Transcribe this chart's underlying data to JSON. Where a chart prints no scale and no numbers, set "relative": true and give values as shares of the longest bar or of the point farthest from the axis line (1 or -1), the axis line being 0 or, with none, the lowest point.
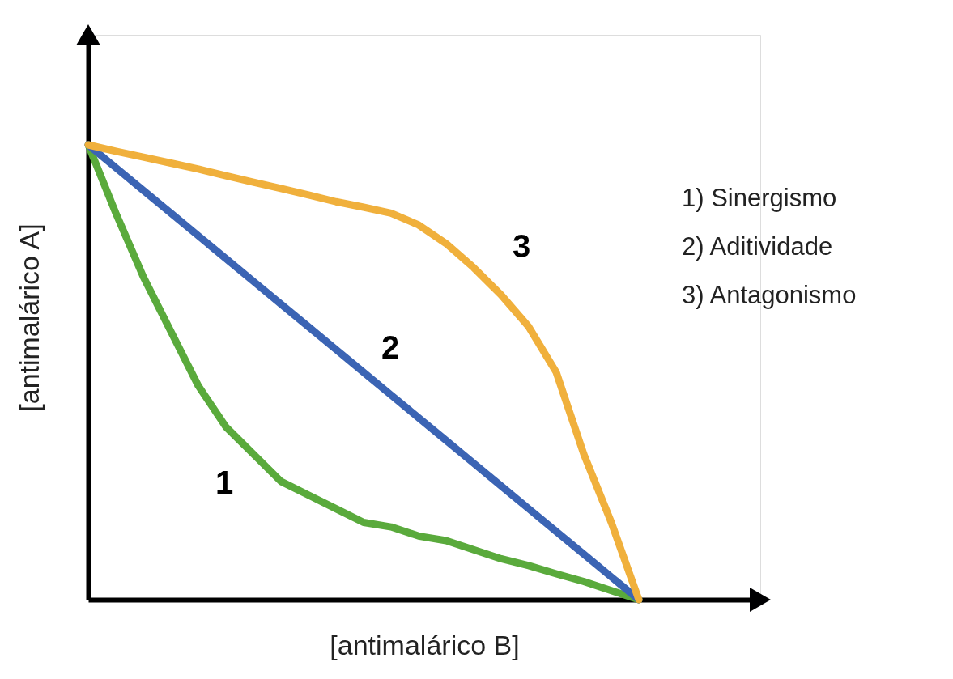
{
  "chart_data": {
    "type": "line",
    "relative": true,
    "xlabel": "[antimalárico B]",
    "ylabel": "[antimalárico A]",
    "categories": [
      null,
      null,
      null,
      null,
      null,
      null,
      null,
      null,
      null,
      null,
      null,
      null,
      null,
      null,
      null,
      null,
      null,
      null,
      null,
      null,
      null
    ],
    "series": [
      {
        "name": "1",
        "color": "#5aaa3c",
        "values": [
          1.0,
          0.85,
          0.71,
          0.59,
          0.47,
          0.38,
          0.32,
          0.26,
          0.23,
          0.2,
          0.17,
          0.16,
          0.14,
          0.13,
          0.11,
          0.09,
          0.075,
          0.057,
          0.04,
          0.02,
          0
        ]
      },
      {
        "name": "2",
        "color": "#3b64b4",
        "values": [
          1.0,
          0.95,
          0.9,
          0.85,
          0.8,
          0.75,
          0.7,
          0.65,
          0.6,
          0.55,
          0.5,
          0.45,
          0.4,
          0.35,
          0.3,
          0.25,
          0.2,
          0.15,
          0.1,
          0.05,
          0
        ]
      },
      {
        "name": "3",
        "color": "#f0b03c",
        "values": [
          1.0,
          0.986,
          0.973,
          0.96,
          0.947,
          0.932,
          0.918,
          0.904,
          0.89,
          0.875,
          0.863,
          0.85,
          0.824,
          0.783,
          0.73,
          0.67,
          0.6,
          0.5,
          0.32,
          0.17,
          0
        ]
      }
    ],
    "annotations": [
      "1) Sinergismo",
      "2) Aditividade",
      "3) Antagonismo"
    ],
    "grid": false,
    "line_style": "solid"
  }
}
